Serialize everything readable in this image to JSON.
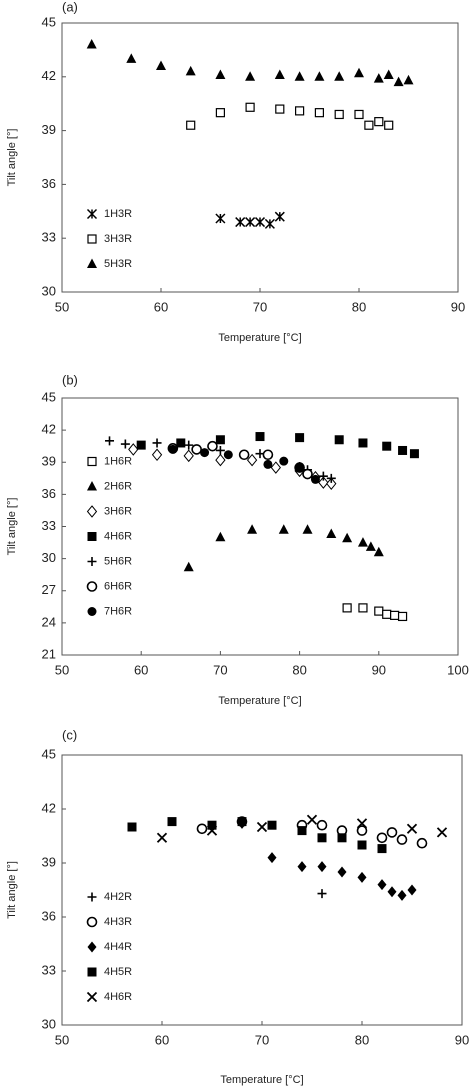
{
  "chart_data": [
    {
      "type": "scatter",
      "panel_label": "(a)",
      "x_label": "Temperature [°C]",
      "y_label": "Tilt angle [°]",
      "xlim": [
        50,
        90
      ],
      "xticks": [
        50,
        60,
        70,
        80,
        90
      ],
      "ylim": [
        30,
        45
      ],
      "yticks": [
        30,
        33,
        36,
        39,
        42,
        45
      ],
      "legend": "lower left",
      "series": [
        {
          "name": "1H3R",
          "color": "#000000",
          "marker": "asterisk",
          "x": [
            66,
            68,
            69,
            70,
            71,
            72
          ],
          "values": [
            34.1,
            33.9,
            33.9,
            33.9,
            33.8,
            34.2
          ]
        },
        {
          "name": "3H3R",
          "color": "#000000",
          "marker": "open-square",
          "x": [
            63,
            66,
            69,
            72,
            74,
            76,
            78,
            80,
            81,
            82,
            83
          ],
          "values": [
            39.3,
            40.0,
            40.3,
            40.2,
            40.1,
            40.0,
            39.9,
            39.9,
            39.3,
            39.5,
            39.3
          ]
        },
        {
          "name": "5H3R",
          "color": "#000000",
          "marker": "triangle",
          "x": [
            53,
            57,
            60,
            63,
            66,
            69,
            72,
            74,
            76,
            78,
            80,
            82,
            83,
            84,
            85
          ],
          "values": [
            43.8,
            43.0,
            42.6,
            42.3,
            42.1,
            42.0,
            42.1,
            42.0,
            42.0,
            42.0,
            42.2,
            41.9,
            42.1,
            41.7,
            41.8
          ]
        }
      ]
    },
    {
      "type": "scatter",
      "panel_label": "(b)",
      "x_label": "Temperature [°C]",
      "y_label": "Tilt angle [°]",
      "xlim": [
        50,
        100
      ],
      "xticks": [
        50,
        60,
        70,
        80,
        90,
        100
      ],
      "ylim": [
        21,
        45
      ],
      "yticks": [
        21,
        24,
        27,
        30,
        33,
        36,
        39,
        42,
        45
      ],
      "legend": "center left",
      "series": [
        {
          "name": "1H6R",
          "color": "#000000",
          "marker": "open-square",
          "x": [
            86,
            88,
            90,
            91,
            92,
            93
          ],
          "values": [
            25.4,
            25.4,
            25.1,
            24.8,
            24.7,
            24.6
          ]
        },
        {
          "name": "2H6R",
          "color": "#000000",
          "marker": "triangle",
          "x": [
            66,
            70,
            74,
            78,
            81,
            84,
            86,
            88,
            89,
            90
          ],
          "values": [
            29.2,
            32.0,
            32.7,
            32.7,
            32.7,
            32.3,
            31.9,
            31.5,
            31.1,
            30.6
          ]
        },
        {
          "name": "3H6R",
          "color": "#000000",
          "marker": "open-diamond",
          "x": [
            59,
            62,
            66,
            70,
            74,
            77,
            80,
            82,
            83,
            84
          ],
          "values": [
            40.2,
            39.7,
            39.6,
            39.2,
            39.2,
            38.5,
            38.2,
            37.6,
            37.1,
            37.0
          ]
        },
        {
          "name": "4H6R",
          "color": "#000000",
          "marker": "square",
          "x": [
            60,
            65,
            70,
            75,
            80,
            85,
            88,
            91,
            93,
            94.5
          ],
          "values": [
            40.6,
            40.8,
            41.1,
            41.4,
            41.3,
            41.1,
            40.8,
            40.5,
            40.1,
            39.8
          ]
        },
        {
          "name": "5H6R",
          "color": "#000000",
          "marker": "plus",
          "x": [
            56,
            58,
            62,
            66,
            70,
            75,
            80,
            81,
            83,
            84
          ],
          "values": [
            41.0,
            40.7,
            40.8,
            40.6,
            40.1,
            39.8,
            38.6,
            38.3,
            37.7,
            37.5
          ]
        },
        {
          "name": "6H6R",
          "color": "#000000",
          "marker": "open-circle",
          "x": [
            64,
            67,
            69,
            73,
            76,
            80,
            81
          ],
          "values": [
            40.3,
            40.2,
            40.5,
            39.7,
            39.7,
            38.5,
            37.9
          ]
        },
        {
          "name": "7H6R",
          "color": "#000000",
          "marker": "circle",
          "x": [
            64,
            68,
            71,
            76,
            78,
            80,
            82
          ],
          "values": [
            40.2,
            39.9,
            39.7,
            38.8,
            39.1,
            38.5,
            37.4
          ]
        }
      ]
    },
    {
      "type": "scatter",
      "panel_label": "(c)",
      "x_label": "Temperature [°C]",
      "y_label": "Tilt angle [°]",
      "xlim": [
        50,
        90
      ],
      "xticks": [
        50,
        60,
        70,
        80,
        90
      ],
      "ylim": [
        30,
        45
      ],
      "yticks": [
        30,
        33,
        36,
        39,
        42,
        45
      ],
      "legend": "lower left",
      "series": [
        {
          "name": "4H2R",
          "color": "#000000",
          "marker": "plus",
          "x": [
            76
          ],
          "values": [
            37.3
          ]
        },
        {
          "name": "4H3R",
          "color": "#000000",
          "marker": "open-circle",
          "x": [
            64,
            68,
            74,
            76,
            78,
            80,
            82,
            83,
            84,
            86
          ],
          "values": [
            40.9,
            41.3,
            41.1,
            41.1,
            40.8,
            40.8,
            40.4,
            40.7,
            40.3,
            40.1
          ]
        },
        {
          "name": "4H4R",
          "color": "#000000",
          "marker": "diamond",
          "x": [
            68,
            71,
            74,
            76,
            78,
            80,
            82,
            83,
            84,
            85
          ],
          "values": [
            41.2,
            39.3,
            38.8,
            38.8,
            38.5,
            38.2,
            37.8,
            37.4,
            37.2,
            37.5
          ]
        },
        {
          "name": "4H5R",
          "color": "#000000",
          "marker": "square",
          "x": [
            57,
            61,
            65,
            68,
            71,
            74,
            76,
            78,
            80,
            82
          ],
          "values": [
            41.0,
            41.3,
            41.1,
            41.3,
            41.1,
            40.8,
            40.4,
            40.4,
            40.0,
            39.8
          ]
        },
        {
          "name": "4H6R",
          "color": "#000000",
          "marker": "cross",
          "x": [
            60,
            65,
            70,
            75,
            80,
            85,
            88
          ],
          "values": [
            40.4,
            40.8,
            41.0,
            41.4,
            41.2,
            40.9,
            40.7
          ]
        }
      ]
    }
  ]
}
